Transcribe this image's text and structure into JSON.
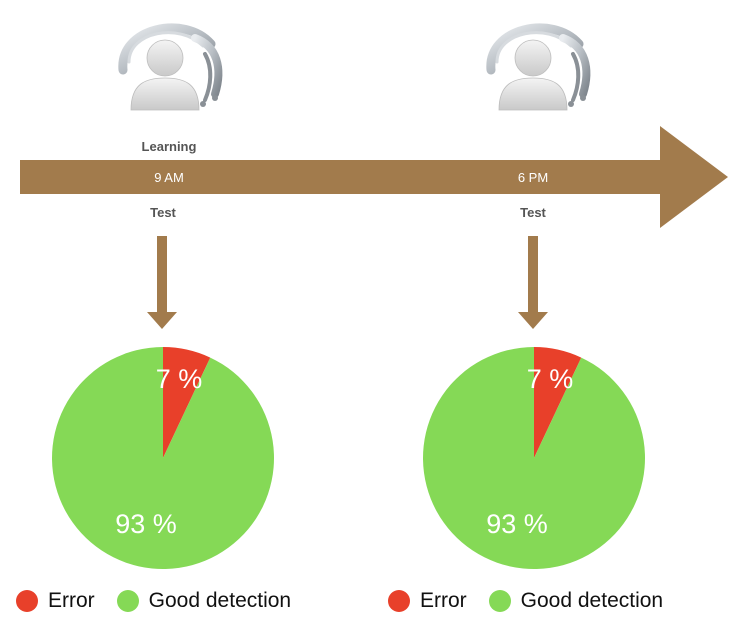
{
  "timeline": {
    "arrow_color": "#a27b4c",
    "events": [
      {
        "top_label": "Learning",
        "time": "9 AM",
        "bottom_label": "Test"
      },
      {
        "top_label": "",
        "time": "6 PM",
        "bottom_label": "Test"
      }
    ],
    "headset_icon": "eeg-headset-user-icon"
  },
  "chart_data": [
    {
      "type": "pie",
      "slices": [
        {
          "label": "Error",
          "value": 7,
          "display": "7 %",
          "color": "#e8402a"
        },
        {
          "label": "Good detection",
          "value": 93,
          "display": "93 %",
          "color": "#85d956"
        }
      ],
      "legend": [
        "Error",
        "Good detection"
      ],
      "legend_position": "bottom"
    },
    {
      "type": "pie",
      "slices": [
        {
          "label": "Error",
          "value": 7,
          "display": "7 %",
          "color": "#e8402a"
        },
        {
          "label": "Good detection",
          "value": 93,
          "display": "93 %",
          "color": "#85d956"
        }
      ],
      "legend": [
        "Error",
        "Good detection"
      ],
      "legend_position": "bottom"
    }
  ]
}
